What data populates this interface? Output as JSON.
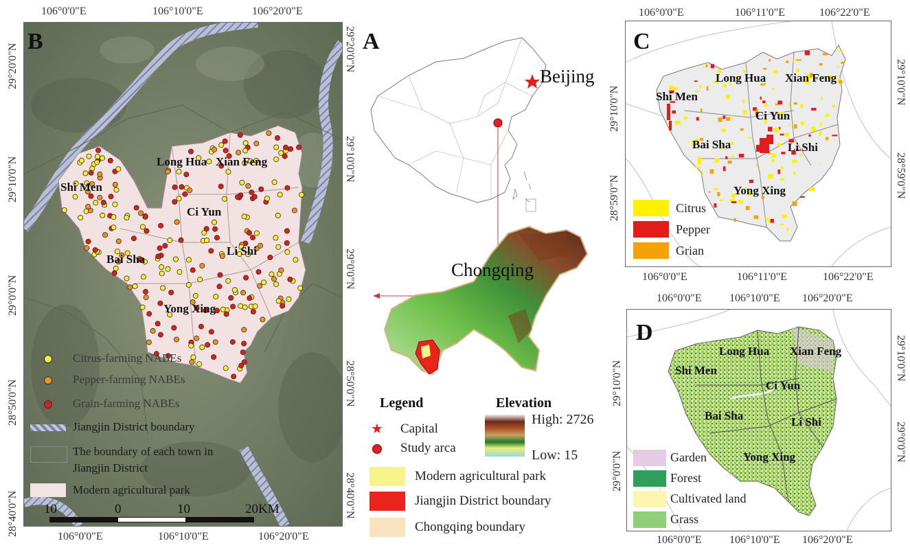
{
  "panels": {
    "B": {
      "letter": "B",
      "top_ticks": [
        "106°0'0\"E",
        "106°10'0\"E",
        "106°20'0\"E"
      ],
      "bottom_ticks": [
        "106°0'0\"E",
        "106°10'0\"E",
        "106°20'0\"E"
      ],
      "left_ticks": [
        "29°20'0\"N",
        "29°10'0\"N",
        "29°0'0\"N",
        "28°50'0\"N",
        "28°40'0\"N"
      ],
      "right_ticks": [
        "29°20'0\"N",
        "29°10'0\"N",
        "29°0'0\"N",
        "28°50'0\"N",
        "28°40'0\"N"
      ],
      "towns": [
        "Long Hua",
        "Xian Feng",
        "Shi Men",
        "Ci Yun",
        "Bai Sha",
        "Li Shi",
        "Yong Xing"
      ],
      "legend": [
        {
          "label": "Citrus-farming NABEs",
          "color": "#f5ee3a"
        },
        {
          "label": "Pepper-farming NABEs",
          "color": "#e8932a"
        },
        {
          "label": "Grain-farming NABEs",
          "color": "#d91f1f"
        },
        {
          "label": "Jiangjin District boundary",
          "color": "#9aa6c4"
        },
        {
          "label": "The boundary of each town in",
          "label2": "Jiangjin District",
          "color": "#888888"
        },
        {
          "label": "Modern agricultural park",
          "color": "#f3e3e3"
        }
      ],
      "scale": {
        "labels": [
          "10",
          "0",
          "10",
          "20KM"
        ]
      }
    },
    "A": {
      "letter": "A",
      "capital_label": "Beijing",
      "region_label": "Chongqing",
      "legend_title": "Legend",
      "elevation_title": "Elevation",
      "capital_entry": "Capital",
      "study_entry": "Study arca",
      "high": "High: 2726",
      "low": "Low: 15",
      "boxes": [
        {
          "label": "Modern agricultural park",
          "color": "#f7f48a"
        },
        {
          "label": "Jiangjin District boundary",
          "color": "#e8241c"
        },
        {
          "label": "Chongqing boundary",
          "color": "#f9e2c0"
        }
      ]
    },
    "C": {
      "letter": "C",
      "top_ticks": [
        "106°0'0\"E",
        "106°11'0\"E",
        "106°22'0\"E"
      ],
      "bottom_ticks": [
        "106°0'0\"E",
        "106°11'0\"E",
        "106°22'0\"E"
      ],
      "left_ticks": [
        "29°10'0\"N",
        "28°59'0\"N"
      ],
      "right_ticks": [
        "29°10'0\"N",
        "28°59'0\"N"
      ],
      "towns": [
        "Long Hua",
        "Xian Feng",
        "Shi Men",
        "Ci Yun",
        "Bai Sha",
        "Li Shi",
        "Yong Xing"
      ],
      "legend": [
        {
          "label": "Citrus",
          "color": "#fff200"
        },
        {
          "label": "Pepper",
          "color": "#e21b1b"
        },
        {
          "label": "Grian",
          "color": "#f5a20a"
        }
      ]
    },
    "D": {
      "letter": "D",
      "top_ticks": [
        "106°0'0\"E",
        "106°10'0\"E",
        "106°20'0\"E"
      ],
      "bottom_ticks": [
        "106°0'0\"E",
        "106°10'0\"E",
        "106°20'0\"E"
      ],
      "left_ticks": [
        "29°10'0\"N",
        "29°0'0\"N"
      ],
      "right_ticks": [
        "29°10'0\"N",
        "29°0'0\"N"
      ],
      "towns": [
        "Long Hua",
        "Xian Feng",
        "Shi Men",
        "Ci Yun",
        "Bai Sha",
        "Li Shi",
        "Yong Xing"
      ],
      "legend": [
        {
          "label": "Garden",
          "color": "#e4cce4"
        },
        {
          "label": "Forest",
          "color": "#2e9e5a"
        },
        {
          "label": "Cultivated land",
          "color": "#fbf5b0"
        },
        {
          "label": "Grass",
          "color": "#8fcf7a"
        }
      ]
    }
  }
}
